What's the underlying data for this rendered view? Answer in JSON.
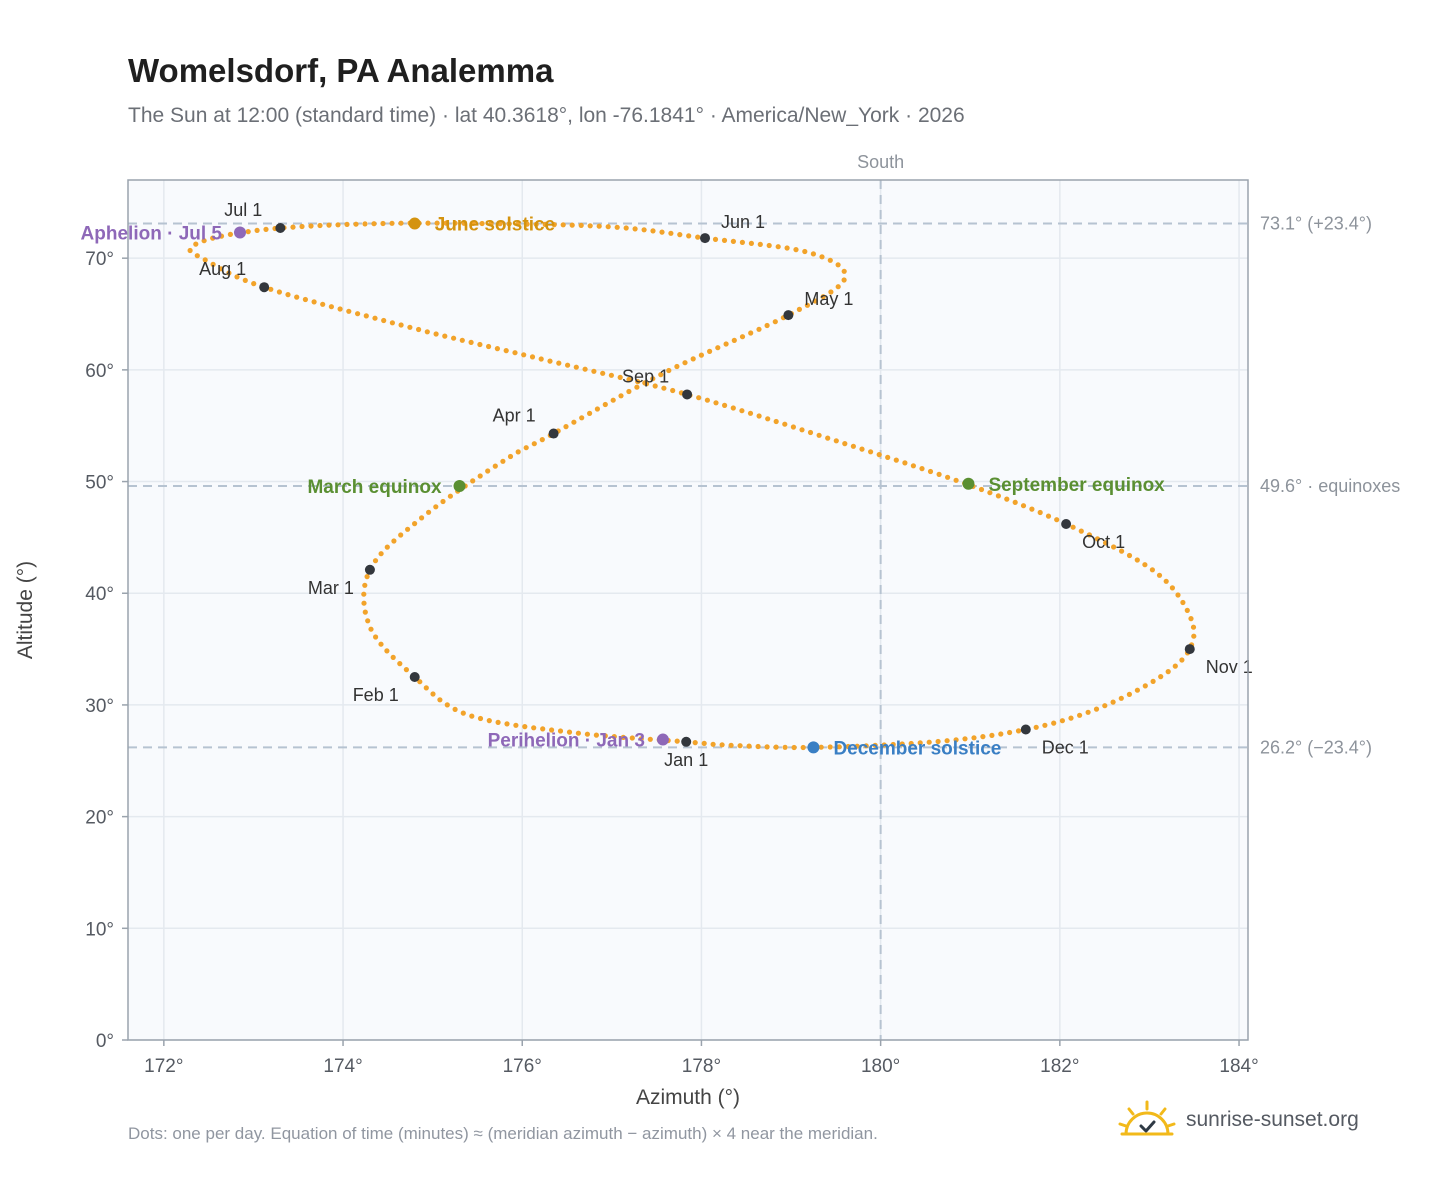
{
  "header": {
    "title": "Womelsdorf, PA Analemma",
    "subtitle": "The Sun at 12:00 (standard time) · lat 40.3618°, lon -76.1841° · America/New_York · 2026"
  },
  "footer": {
    "note": "Dots: one per day. Equation of time (minutes) ≈ (meridian azimuth − azimuth) × 4 near the meridian.",
    "brand": "sunrise-sunset.org"
  },
  "colors": {
    "path": "#f2a32a",
    "month_dot": "#33373d",
    "june_solstice": "#d4930f",
    "december_solstice": "#3a7fc4",
    "equinox": "#5a8f32",
    "apsis": "#8e68b8",
    "reference_line": "#b6c3d1",
    "plot_bg": "#f8fafd",
    "grid": "#e4e9ef",
    "frame": "#9aa3ad"
  },
  "chart_data": {
    "type": "scatter",
    "xlabel": "Azimuth (°)",
    "ylabel": "Altitude (°)",
    "xlim": [
      171.6,
      184.1
    ],
    "ylim": [
      0,
      77
    ],
    "x_ticks": [
      172,
      174,
      176,
      178,
      180,
      182,
      184
    ],
    "x_tick_labels": [
      "172°",
      "174°",
      "176°",
      "178°",
      "180°",
      "182°",
      "184°"
    ],
    "y_ticks": [
      0,
      10,
      20,
      30,
      40,
      50,
      60,
      70
    ],
    "y_tick_labels": [
      "0°",
      "10°",
      "20°",
      "30°",
      "40°",
      "50°",
      "60°",
      "70°"
    ],
    "grid": true,
    "meridian": {
      "x": 180,
      "label": "South"
    },
    "reference_lines": [
      {
        "y": 73.1,
        "label": "73.1° (+23.4°)"
      },
      {
        "y": 49.6,
        "label": "49.6° · equinoxes"
      },
      {
        "y": 26.2,
        "label": "26.2° (−23.4°)"
      }
    ],
    "path_anchors": [
      [
        177.83,
        26.7
      ],
      [
        176.6,
        27.5
      ],
      [
        175.4,
        29.1
      ],
      [
        174.8,
        32.5
      ],
      [
        174.3,
        37.0
      ],
      [
        174.3,
        42.1
      ],
      [
        174.9,
        46.9
      ],
      [
        175.8,
        51.9
      ],
      [
        176.35,
        54.3
      ],
      [
        177.6,
        59.8
      ],
      [
        178.97,
        64.9
      ],
      [
        179.6,
        68.2
      ],
      [
        179.2,
        70.5
      ],
      [
        178.04,
        71.8
      ],
      [
        177.0,
        72.8
      ],
      [
        175.6,
        73.1
      ],
      [
        174.4,
        73.1
      ],
      [
        173.3,
        72.7
      ],
      [
        172.6,
        71.9
      ],
      [
        172.3,
        70.9
      ],
      [
        172.45,
        69.9
      ],
      [
        173.12,
        67.4
      ],
      [
        174.8,
        63.7
      ],
      [
        176.2,
        61.0
      ],
      [
        177.84,
        57.8
      ],
      [
        179.6,
        53.4
      ],
      [
        180.95,
        49.8
      ],
      [
        182.07,
        46.2
      ],
      [
        183.05,
        42.0
      ],
      [
        183.45,
        38.0
      ],
      [
        183.45,
        35.0
      ],
      [
        183.1,
        32.4
      ],
      [
        182.4,
        29.6
      ],
      [
        181.62,
        27.8
      ],
      [
        180.6,
        26.7
      ],
      [
        179.25,
        26.2
      ],
      [
        178.3,
        26.4
      ],
      [
        177.83,
        26.7
      ]
    ],
    "month_markers": [
      {
        "label": "Jan 1",
        "x": 177.83,
        "y": 26.7,
        "anchor": "below"
      },
      {
        "label": "Feb 1",
        "x": 174.8,
        "y": 32.5,
        "anchor": "below-left"
      },
      {
        "label": "Mar 1",
        "x": 174.3,
        "y": 42.1,
        "anchor": "below-left"
      },
      {
        "label": "Apr 1",
        "x": 176.35,
        "y": 54.3,
        "anchor": "above-left"
      },
      {
        "label": "May 1",
        "x": 178.97,
        "y": 64.9,
        "anchor": "above-right"
      },
      {
        "label": "Jun 1",
        "x": 178.04,
        "y": 71.8,
        "anchor": "above-right"
      },
      {
        "label": "Jul 1",
        "x": 173.3,
        "y": 72.7,
        "anchor": "above-left"
      },
      {
        "label": "Aug 1",
        "x": 173.12,
        "y": 67.4,
        "anchor": "above-left"
      },
      {
        "label": "Sep 1",
        "x": 177.84,
        "y": 57.8,
        "anchor": "above-left"
      },
      {
        "label": "Oct 1",
        "x": 182.07,
        "y": 46.2,
        "anchor": "below-right"
      },
      {
        "label": "Nov 1",
        "x": 183.45,
        "y": 35.0,
        "anchor": "below-right"
      },
      {
        "label": "Dec 1",
        "x": 181.62,
        "y": 27.8,
        "anchor": "below-right"
      }
    ],
    "events": [
      {
        "label": "June solstice",
        "x": 174.8,
        "y": 73.1,
        "color": "#d4930f",
        "anchor": "right"
      },
      {
        "label": "December solstice",
        "x": 179.25,
        "y": 26.2,
        "color": "#3a7fc4",
        "anchor": "right"
      },
      {
        "label": "March equinox",
        "x": 175.3,
        "y": 49.6,
        "color": "#5a8f32",
        "anchor": "left"
      },
      {
        "label": "September equinox",
        "x": 180.98,
        "y": 49.8,
        "color": "#5a8f32",
        "anchor": "right"
      },
      {
        "label": "Aphelion · Jul 5",
        "x": 172.85,
        "y": 72.3,
        "color": "#8e68b8",
        "anchor": "left"
      },
      {
        "label": "Perihelion · Jan 3",
        "x": 177.57,
        "y": 26.9,
        "color": "#8e68b8",
        "anchor": "left"
      }
    ]
  }
}
